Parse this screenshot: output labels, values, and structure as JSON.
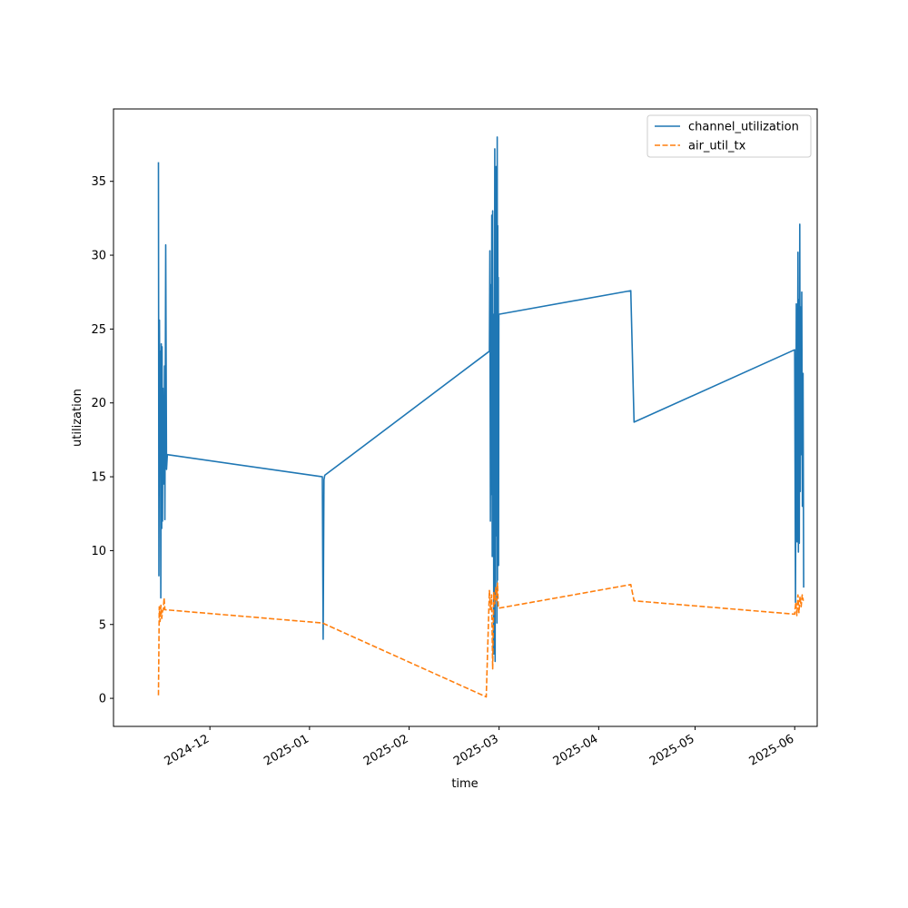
{
  "chart_data": {
    "type": "line",
    "title": "",
    "xlabel": "time",
    "ylabel": "utilization",
    "x_axis_type": "date",
    "xlim": [
      "2024-11-01",
      "2025-06-08"
    ],
    "ylim": [
      -1.9,
      39.9
    ],
    "grid": false,
    "legend_position": "top-right",
    "x_ticks": [
      "2024-12",
      "2025-01",
      "2025-02",
      "2025-03",
      "2025-04",
      "2025-05",
      "2025-06"
    ],
    "x_tick_values": [
      "2024-12-01",
      "2025-01-01",
      "2025-02-01",
      "2025-03-01",
      "2025-04-01",
      "2025-05-01",
      "2025-06-01"
    ],
    "y_ticks": [
      0,
      5,
      10,
      15,
      20,
      25,
      30,
      35
    ],
    "series": [
      {
        "name": "channel_utilization",
        "color": "#1f77b4",
        "style": "solid",
        "points": [
          [
            "2024-11-15",
            36.3
          ],
          [
            "2024-11-15",
            8.3
          ],
          [
            "2024-11-15",
            25.6
          ],
          [
            "2024-11-15",
            18.0
          ],
          [
            "2024-11-15",
            23.5
          ],
          [
            "2024-11-15",
            6.8
          ],
          [
            "2024-11-15",
            24.0
          ],
          [
            "2024-11-16",
            11.5
          ],
          [
            "2024-11-16",
            23.8
          ],
          [
            "2024-11-16",
            12.0
          ],
          [
            "2024-11-16",
            21.0
          ],
          [
            "2024-11-16",
            14.5
          ],
          [
            "2024-11-16",
            19.0
          ],
          [
            "2024-11-16",
            16.2
          ],
          [
            "2024-11-16",
            22.5
          ],
          [
            "2024-11-17",
            12.1
          ],
          [
            "2024-11-17",
            30.7
          ],
          [
            "2024-11-17",
            15.5
          ],
          [
            "2024-11-17",
            16.5
          ],
          [
            "2025-01-05",
            15.0
          ],
          [
            "2025-01-05",
            4.0
          ],
          [
            "2025-01-05",
            14.8
          ],
          [
            "2025-01-05",
            15.1
          ],
          [
            "2025-02-26",
            23.5
          ],
          [
            "2025-02-26",
            30.3
          ],
          [
            "2025-02-26",
            12.0
          ],
          [
            "2025-02-26",
            28.0
          ],
          [
            "2025-02-26",
            13.8
          ],
          [
            "2025-02-26",
            32.7
          ],
          [
            "2025-02-26",
            9.6
          ],
          [
            "2025-02-27",
            33.0
          ],
          [
            "2025-02-27",
            10.0
          ],
          [
            "2025-02-27",
            26.0
          ],
          [
            "2025-02-27",
            3.0
          ],
          [
            "2025-02-27",
            24.0
          ],
          [
            "2025-02-27",
            14.0
          ],
          [
            "2025-02-27",
            37.2
          ],
          [
            "2025-02-27",
            2.5
          ],
          [
            "2025-02-27",
            31.0
          ],
          [
            "2025-02-28",
            11.0
          ],
          [
            "2025-02-28",
            36.0
          ],
          [
            "2025-02-28",
            15.0
          ],
          [
            "2025-02-28",
            34.5
          ],
          [
            "2025-02-28",
            5.1
          ],
          [
            "2025-02-28",
            38.0
          ],
          [
            "2025-02-28",
            8.0
          ],
          [
            "2025-02-28",
            32.0
          ],
          [
            "2025-02-28",
            12.0
          ],
          [
            "2025-02-28",
            28.5
          ],
          [
            "2025-02-28",
            9.0
          ],
          [
            "2025-02-28",
            26.0
          ],
          [
            "2025-04-11",
            27.6
          ],
          [
            "2025-04-12",
            18.7
          ],
          [
            "2025-06-01",
            23.6
          ],
          [
            "2025-06-01",
            6.5
          ],
          [
            "2025-06-01",
            26.7
          ],
          [
            "2025-06-01",
            10.6
          ],
          [
            "2025-06-02",
            30.2
          ],
          [
            "2025-06-02",
            9.9
          ],
          [
            "2025-06-02",
            27.0
          ],
          [
            "2025-06-02",
            10.5
          ],
          [
            "2025-06-02",
            32.1
          ],
          [
            "2025-06-02",
            14.0
          ],
          [
            "2025-06-02",
            26.5
          ],
          [
            "2025-06-03",
            16.5
          ],
          [
            "2025-06-03",
            27.5
          ],
          [
            "2025-06-03",
            13.0
          ],
          [
            "2025-06-03",
            22.0
          ],
          [
            "2025-06-03",
            7.5
          ]
        ]
      },
      {
        "name": "air_util_tx",
        "color": "#ff7f0e",
        "style": "dashed",
        "points": [
          [
            "2024-11-15",
            0.2
          ],
          [
            "2024-11-15",
            6.2
          ],
          [
            "2024-11-15",
            5.2
          ],
          [
            "2024-11-15",
            6.3
          ],
          [
            "2024-11-16",
            5.4
          ],
          [
            "2024-11-16",
            5.9
          ],
          [
            "2024-11-16",
            6.0
          ],
          [
            "2024-11-16",
            6.8
          ],
          [
            "2024-11-17",
            6.0
          ],
          [
            "2025-01-05",
            5.1
          ],
          [
            "2025-02-25",
            0.1
          ],
          [
            "2025-02-26",
            7.3
          ],
          [
            "2025-02-26",
            6.0
          ],
          [
            "2025-02-26",
            7.0
          ],
          [
            "2025-02-27",
            2.0
          ],
          [
            "2025-02-27",
            7.2
          ],
          [
            "2025-02-27",
            6.4
          ],
          [
            "2025-02-28",
            7.5
          ],
          [
            "2025-02-28",
            6.6
          ],
          [
            "2025-02-28",
            7.8
          ],
          [
            "2025-02-28",
            6.1
          ],
          [
            "2025-04-11",
            7.7
          ],
          [
            "2025-04-12",
            6.6
          ],
          [
            "2025-06-01",
            5.7
          ],
          [
            "2025-06-01",
            6.5
          ],
          [
            "2025-06-01",
            5.6
          ],
          [
            "2025-06-02",
            7.0
          ],
          [
            "2025-06-02",
            5.8
          ],
          [
            "2025-06-02",
            6.9
          ],
          [
            "2025-06-03",
            6.2
          ],
          [
            "2025-06-03",
            7.0
          ],
          [
            "2025-06-03",
            6.6
          ]
        ]
      }
    ]
  }
}
